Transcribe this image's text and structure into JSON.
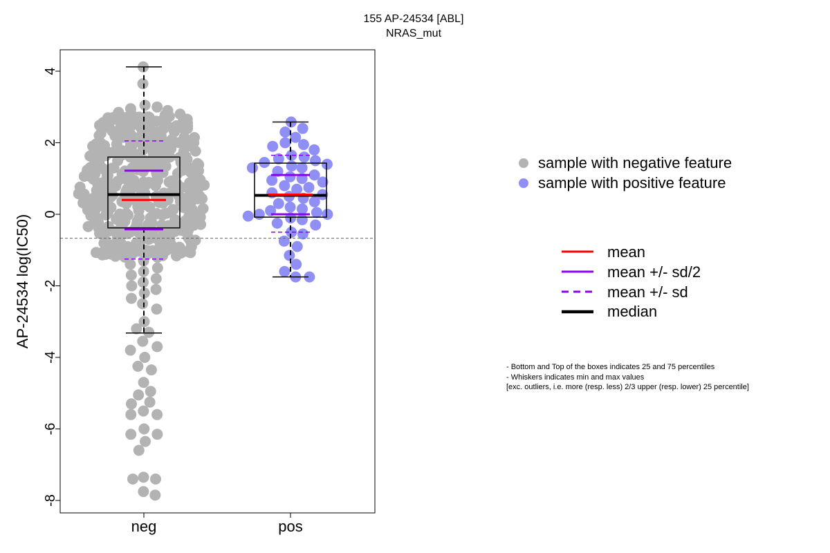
{
  "chart_data": {
    "type": "scatter",
    "title": "155 AP-24534 [ABL]",
    "subtitle": "NRAS_mut",
    "ylabel": "AP-24534 log(IC50)",
    "xlabel": "",
    "categories": [
      "neg",
      "pos"
    ],
    "ylim": [
      -8.3,
      4.5
    ],
    "yticks": [
      -8,
      -6,
      -4,
      -2,
      0,
      2,
      4
    ],
    "reference_line_y": -0.67,
    "colors": {
      "neg": "#b3b3b3",
      "pos": "#8f8ff5",
      "mean": "#ff0000",
      "sd": "#8b00ee",
      "median": "#000000",
      "ref": "#666666"
    },
    "boxes": [
      {
        "category": "neg",
        "q1": -0.38,
        "median": 0.55,
        "q3": 1.6,
        "whisker_low": -3.32,
        "whisker_high": 4.12,
        "mean": 0.4,
        "mean_minus_half_sd": -0.42,
        "mean_plus_half_sd": 1.22,
        "mean_minus_sd": -1.25,
        "mean_plus_sd": 2.05
      },
      {
        "category": "pos",
        "q1": -0.08,
        "median": 0.53,
        "q3": 1.43,
        "whisker_low": -1.75,
        "whisker_high": 2.58,
        "mean": 0.55,
        "mean_minus_half_sd": 0.0,
        "mean_plus_half_sd": 1.1,
        "mean_minus_sd": -0.5,
        "mean_plus_sd": 1.65
      }
    ],
    "series": [
      {
        "category": "neg",
        "values": [
          4.12,
          3.65,
          3.05,
          3.0,
          2.95,
          2.9,
          2.85,
          2.8,
          2.7,
          2.6,
          2.5,
          2.4,
          2.3,
          2.2,
          2.1,
          2.0,
          1.9,
          1.8,
          1.7,
          1.6,
          1.5,
          1.4,
          1.3,
          1.2,
          1.1,
          1.0,
          0.9,
          0.8,
          0.7,
          0.6,
          0.5,
          0.4,
          0.3,
          0.2,
          0.1,
          0.0,
          -0.1,
          -0.2,
          -0.3,
          -0.4,
          -0.5,
          -0.6,
          -0.7,
          -0.8,
          -0.9,
          -1.0,
          -1.1,
          -1.2,
          -1.3,
          -1.4,
          -1.5,
          -1.6,
          -1.7,
          -1.8,
          -1.9,
          -2.0,
          -2.1,
          -2.2,
          -2.35,
          -2.5,
          -2.65,
          -3.0,
          -3.2,
          -3.3,
          -3.55,
          -3.7,
          -3.8,
          -4.0,
          -4.25,
          -4.35,
          -4.7,
          -4.95,
          -5.05,
          -5.25,
          -5.3,
          -5.5,
          -5.6,
          -5.6,
          -6.0,
          -6.15,
          -6.15,
          -6.35,
          -6.6,
          -7.35,
          -7.4,
          -7.4,
          -7.75,
          -7.85
        ]
      },
      {
        "category": "pos",
        "values": [
          2.58,
          2.4,
          2.3,
          2.15,
          2.0,
          1.95,
          1.9,
          1.8,
          1.65,
          1.6,
          1.55,
          1.5,
          1.45,
          1.4,
          1.35,
          1.3,
          1.3,
          1.2,
          1.1,
          1.05,
          1.0,
          0.95,
          0.9,
          0.8,
          0.75,
          0.7,
          0.6,
          0.55,
          0.5,
          0.45,
          0.35,
          0.3,
          0.2,
          0.15,
          0.1,
          0.05,
          0.0,
          0.0,
          -0.05,
          -0.1,
          -0.15,
          -0.25,
          -0.3,
          -0.5,
          -0.55,
          -0.75,
          -0.9,
          -1.15,
          -1.4,
          -1.6,
          -1.75,
          -1.75
        ]
      }
    ],
    "legend": {
      "points": [
        {
          "label": "sample with negative feature",
          "color": "#b3b3b3"
        },
        {
          "label": "sample with positive feature",
          "color": "#8f8ff5"
        }
      ],
      "lines": [
        {
          "label": "mean",
          "color": "#ff0000",
          "style": "solid"
        },
        {
          "label": "mean +/- sd/2",
          "color": "#8b00ee",
          "style": "solid"
        },
        {
          "label": "mean +/- sd",
          "color": "#8b00ee",
          "style": "dashed"
        },
        {
          "label": "median",
          "color": "#000000",
          "style": "solid-thick"
        }
      ],
      "placement": "right"
    },
    "notes": [
      "- Bottom and Top of the boxes indicates 25 and 75 percentiles",
      "- Whiskers indicates min and max values",
      "[exc. outliers, i.e. more (resp. less) 2/3 upper (resp. lower) 25 percentile]"
    ]
  }
}
